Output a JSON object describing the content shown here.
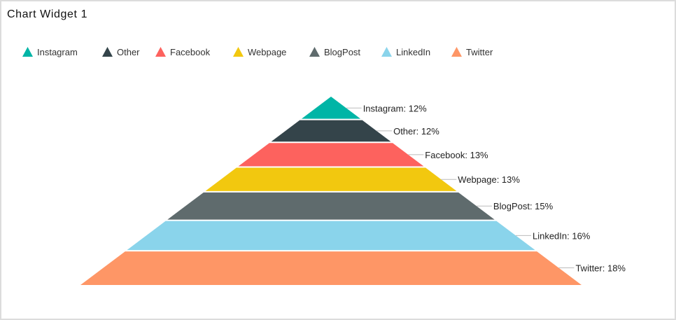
{
  "widget": {
    "title": "Chart Widget 1"
  },
  "chart_data": {
    "type": "pyramid",
    "title": "",
    "legend_position": "top-left",
    "categories": [
      "Instagram",
      "Other",
      "Facebook",
      "Webpage",
      "BlogPost",
      "LinkedIn",
      "Twitter"
    ],
    "values": [
      12,
      12,
      13,
      13,
      15,
      16,
      18
    ],
    "unit": "%",
    "labels": [
      "Instagram: 12%",
      "Other: 12%",
      "Facebook: 13%",
      "Webpage: 13%",
      "BlogPost: 15%",
      "LinkedIn: 16%",
      "Twitter: 18%"
    ],
    "colors": [
      "#00b5a6",
      "#34444a",
      "#fd625e",
      "#f2c80f",
      "#5f6b6d",
      "#8ad4eb",
      "#fe9666"
    ]
  }
}
